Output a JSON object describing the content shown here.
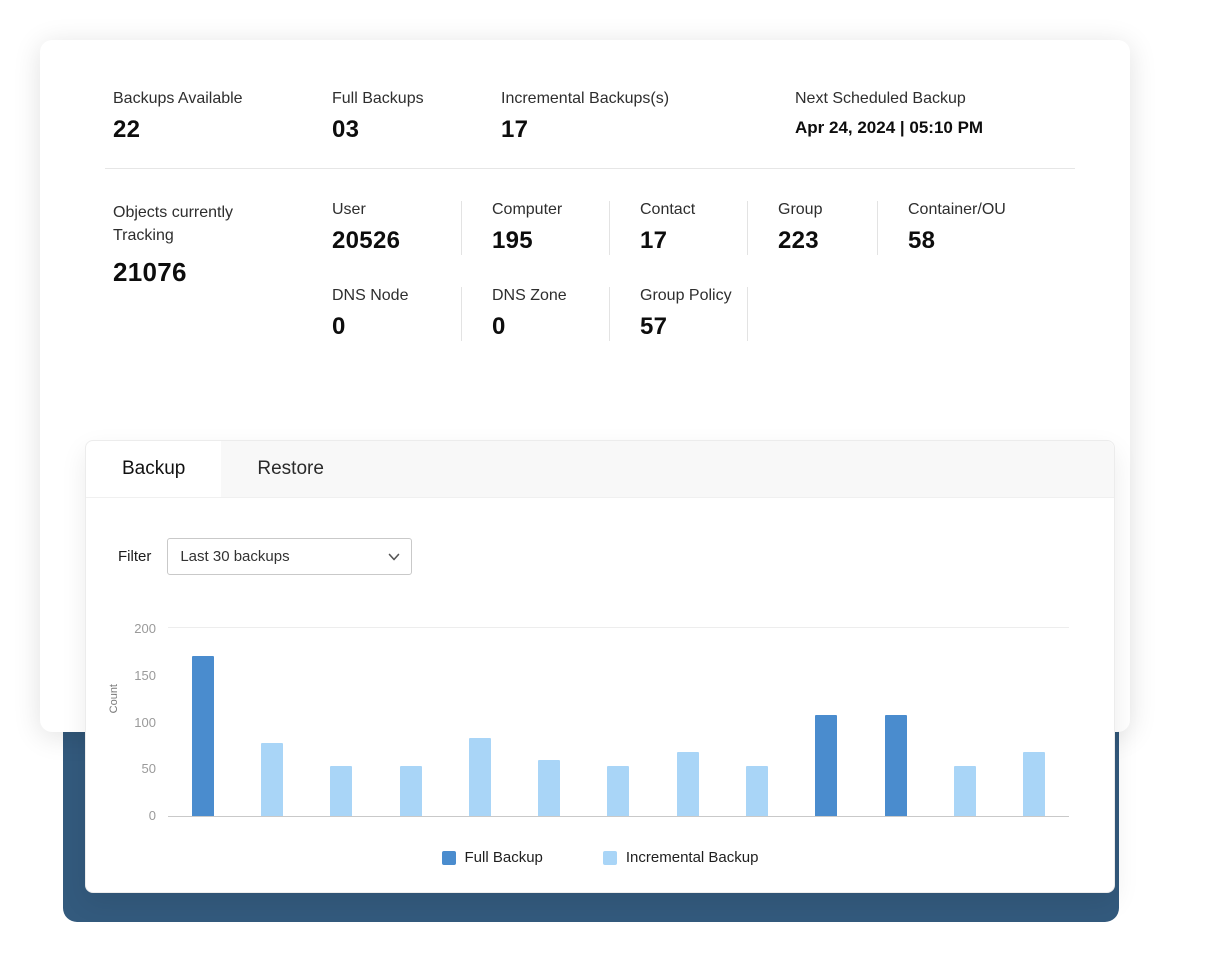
{
  "header_stats": {
    "items": [
      {
        "label": "Backups Available",
        "value": "22"
      },
      {
        "label": "Full Backups",
        "value": "03"
      },
      {
        "label": "Incremental Backups(s)",
        "value": "17"
      },
      {
        "label": "Next Scheduled Backup",
        "value": "Apr 24, 2024 | 05:10 PM"
      }
    ]
  },
  "objects_tracking": {
    "label": "Objects currently Tracking",
    "value": "21076",
    "row1": [
      {
        "label": "User",
        "value": "20526"
      },
      {
        "label": "Computer",
        "value": "195"
      },
      {
        "label": "Contact",
        "value": "17"
      },
      {
        "label": "Group",
        "value": "223"
      },
      {
        "label": "Container/OU",
        "value": "58"
      }
    ],
    "row2": [
      {
        "label": "DNS Node",
        "value": "0"
      },
      {
        "label": "DNS Zone",
        "value": "0"
      },
      {
        "label": "Group Policy",
        "value": "57"
      }
    ]
  },
  "tabs": [
    {
      "label": "Backup",
      "active": true
    },
    {
      "label": "Restore",
      "active": false
    }
  ],
  "filter": {
    "label": "Filter",
    "selected_option": "Last 30 backups"
  },
  "chart_data": {
    "type": "bar",
    "title": "",
    "xlabel": "",
    "ylabel": "Count",
    "ylim": [
      0,
      200
    ],
    "yticks": [
      0,
      50,
      100,
      150,
      200
    ],
    "grid": "top line at 200 and baseline at 0",
    "legend_position": "bottom-center",
    "colors": {
      "full": "#4a8cce",
      "incremental": "#a9d5f7"
    },
    "bars": [
      {
        "series": "full",
        "value": 170
      },
      {
        "series": "incremental",
        "value": 78
      },
      {
        "series": "incremental",
        "value": 53
      },
      {
        "series": "incremental",
        "value": 53
      },
      {
        "series": "incremental",
        "value": 83
      },
      {
        "series": "incremental",
        "value": 60
      },
      {
        "series": "incremental",
        "value": 53
      },
      {
        "series": "incremental",
        "value": 68
      },
      {
        "series": "incremental",
        "value": 53
      },
      {
        "series": "full",
        "value": 107
      },
      {
        "series": "full",
        "value": 107
      },
      {
        "series": "incremental",
        "value": 53
      },
      {
        "series": "incremental",
        "value": 68
      }
    ],
    "legend": [
      {
        "label": "Full Backup",
        "series": "full"
      },
      {
        "label": "Incremental Backup",
        "series": "incremental"
      }
    ]
  }
}
